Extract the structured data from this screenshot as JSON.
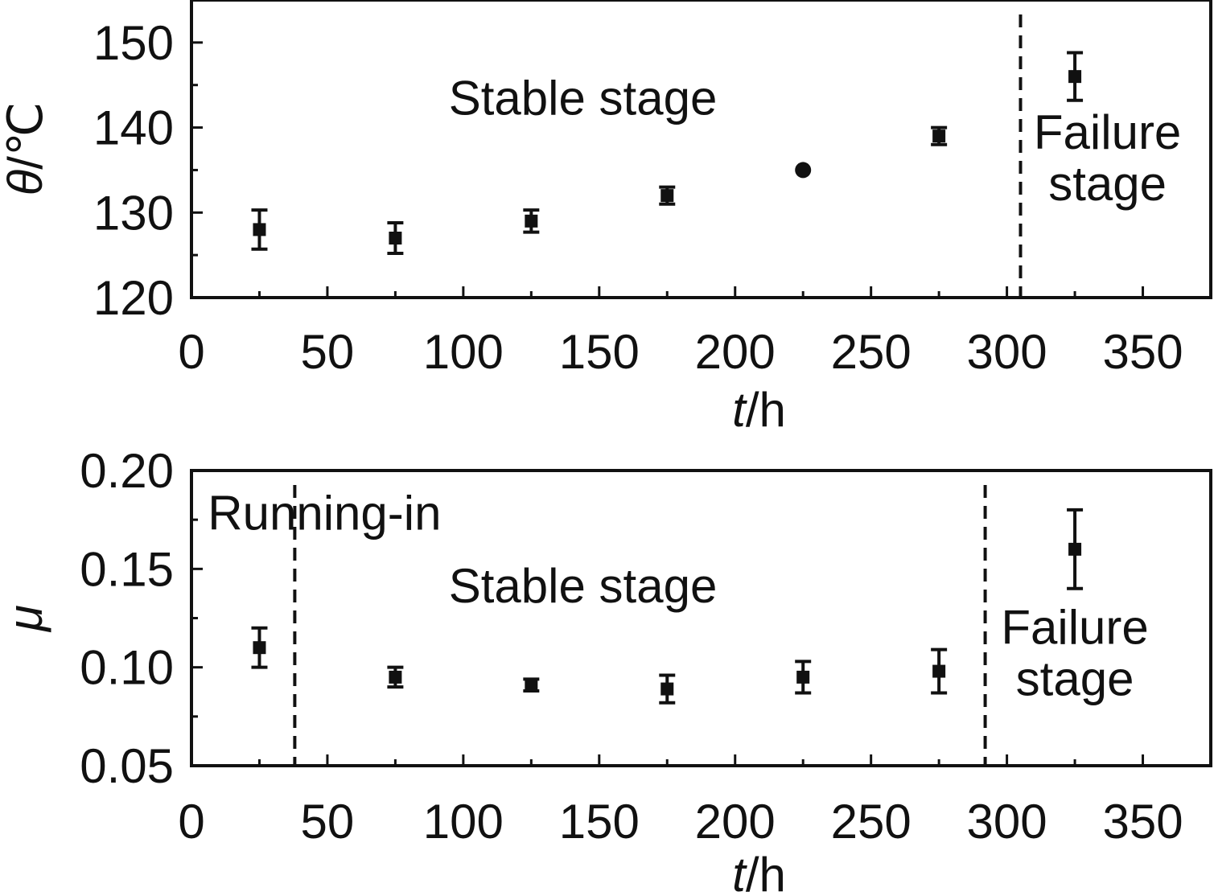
{
  "chart_data": [
    {
      "type": "scatter",
      "title": "",
      "xlabel_var": "t",
      "xlabel_unit": "/h",
      "ylabel_var": "θ",
      "ylabel_unit": "/℃",
      "xlim": [
        0,
        375
      ],
      "ylim": [
        120,
        155
      ],
      "xticks": [
        "0",
        "50",
        "100",
        "150",
        "200",
        "250",
        "300",
        "350"
      ],
      "yticks": [
        "120",
        "130",
        "140",
        "150"
      ],
      "grid": false,
      "color": "#111111",
      "points": [
        {
          "x": 25,
          "y": 128,
          "err": 2.3
        },
        {
          "x": 75,
          "y": 127,
          "err": 1.8
        },
        {
          "x": 125,
          "y": 129,
          "err": 1.3
        },
        {
          "x": 175,
          "y": 132,
          "err": 1.0
        },
        {
          "x": 225,
          "y": 135,
          "err": 0
        },
        {
          "x": 275,
          "y": 139,
          "err": 1.0
        },
        {
          "x": 325,
          "y": 146,
          "err": 2.8
        }
      ],
      "dividers": [
        305
      ],
      "annotations": [
        {
          "lines": [
            "Stable stage"
          ],
          "x": 144,
          "y": 141.5,
          "anchor": "middle"
        },
        {
          "lines": [
            "Failure",
            "stage"
          ],
          "x": 337,
          "y": 137.5,
          "anchor": "middle"
        }
      ]
    },
    {
      "type": "scatter",
      "title": "",
      "xlabel_var": "t",
      "xlabel_unit": "/h",
      "ylabel_var": "μ",
      "ylabel_unit": "",
      "xlim": [
        0,
        375
      ],
      "ylim": [
        0.05,
        0.2
      ],
      "xticks": [
        "0",
        "50",
        "100",
        "150",
        "200",
        "250",
        "300",
        "350"
      ],
      "yticks": [
        "0.05",
        "0.10",
        "0.15",
        "0.20"
      ],
      "grid": false,
      "color": "#111111",
      "points": [
        {
          "x": 25,
          "y": 0.11,
          "err": 0.01
        },
        {
          "x": 75,
          "y": 0.095,
          "err": 0.005
        },
        {
          "x": 125,
          "y": 0.091,
          "err": 0.003
        },
        {
          "x": 175,
          "y": 0.089,
          "err": 0.007
        },
        {
          "x": 225,
          "y": 0.095,
          "err": 0.008
        },
        {
          "x": 275,
          "y": 0.098,
          "err": 0.011
        },
        {
          "x": 325,
          "y": 0.16,
          "err": 0.02
        }
      ],
      "dividers": [
        38,
        292
      ],
      "annotations": [
        {
          "lines": [
            "Running-in"
          ],
          "x": 6,
          "y": 0.17,
          "anchor": "start"
        },
        {
          "lines": [
            "Stable stage"
          ],
          "x": 144,
          "y": 0.133,
          "anchor": "middle"
        },
        {
          "lines": [
            "Failure",
            "stage"
          ],
          "x": 325,
          "y": 0.112,
          "anchor": "middle"
        }
      ]
    }
  ]
}
